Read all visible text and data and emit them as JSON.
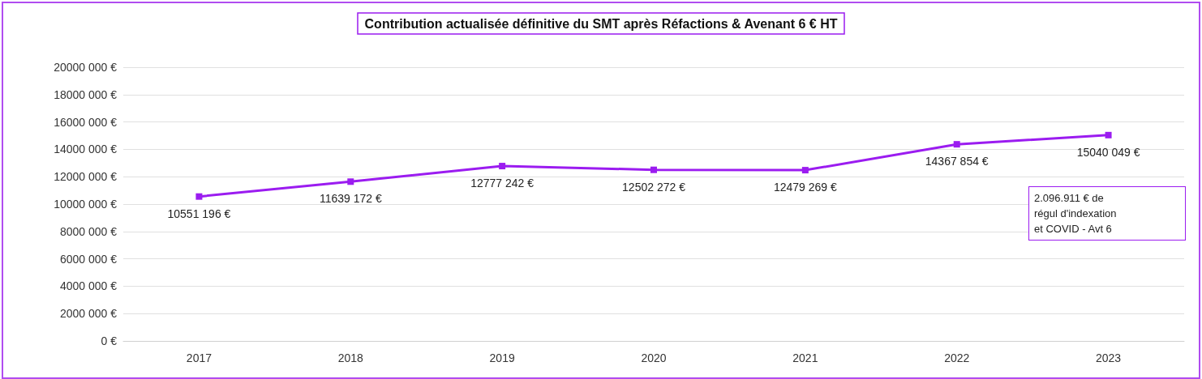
{
  "chart_data": {
    "type": "line",
    "title": "Contribution actualisée définitive du SMT après Réfactions & Avenant 6 € HT",
    "categories": [
      "2017",
      "2018",
      "2019",
      "2020",
      "2021",
      "2022",
      "2023"
    ],
    "series": [
      {
        "color": "#9b1cf0",
        "values": [
          10551196,
          11639172,
          12777242,
          12502272,
          12479269,
          14367854,
          15040049
        ],
        "value_labels": [
          "10551 196 €",
          "11639 172 €",
          "12777 242 €",
          "12502 272 €",
          "12479 269 €",
          "14367 854 €",
          "15040 049 €"
        ]
      }
    ],
    "ylim": [
      0,
      20000000
    ],
    "yticks": [
      {
        "value": 0,
        "label": "0 €"
      },
      {
        "value": 2000000,
        "label": "2000 000 €"
      },
      {
        "value": 4000000,
        "label": "4000 000 €"
      },
      {
        "value": 6000000,
        "label": "6000 000 €"
      },
      {
        "value": 8000000,
        "label": "8000 000 €"
      },
      {
        "value": 10000000,
        "label": "10000 000 €"
      },
      {
        "value": 12000000,
        "label": "12000 000 €"
      },
      {
        "value": 14000000,
        "label": "14000 000 €"
      },
      {
        "value": 16000000,
        "label": "16000 000 €"
      },
      {
        "value": 18000000,
        "label": "18000 000 €"
      },
      {
        "value": 20000000,
        "label": "20000 000 €"
      }
    ],
    "grid": "y",
    "marker": "square",
    "line_style": "solid",
    "annotations": [
      "2.096.911 € de\nrégul d'indexation\net COVID - Avt 6"
    ]
  }
}
